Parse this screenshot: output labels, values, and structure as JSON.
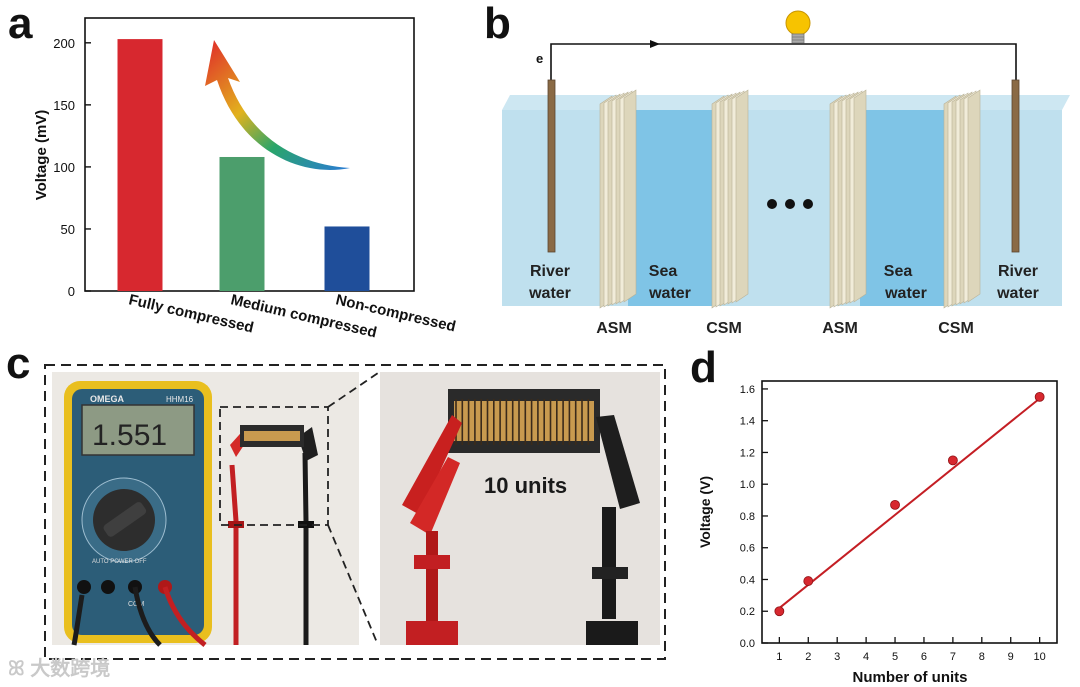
{
  "panels": {
    "a": "a",
    "b": "b",
    "c": "c",
    "d": "d"
  },
  "chart_a": {
    "type": "bar",
    "ylabel": "Voltage (mV)",
    "yticks": [
      "0",
      "50",
      "100",
      "150",
      "200"
    ],
    "categories": [
      "Fully compressed",
      "Medium compressed",
      "Non-compressed"
    ],
    "values": [
      203,
      108,
      52
    ],
    "ylim": [
      0,
      220
    ],
    "colors": [
      "#d7282f",
      "#4c9e6c",
      "#1f4e9a"
    ]
  },
  "schematic_b": {
    "electron_label": "e",
    "river_left": [
      "River",
      "water"
    ],
    "sea_left": [
      "Sea",
      "water"
    ],
    "sea_right": [
      "Sea",
      "water"
    ],
    "river_right": [
      "River",
      "water"
    ],
    "membranes": [
      "ASM",
      "CSM",
      "ASM",
      "CSM"
    ]
  },
  "photo_c": {
    "meter_brand": "OMEGA",
    "meter_model": "HHM16",
    "display_reading": "1.551",
    "meter_text": [
      "AUTO POWER OFF",
      "COM"
    ],
    "units_label": "10 units"
  },
  "chart_data": {
    "type": "scatter",
    "xlabel": "Number of units",
    "ylabel": "Voltage (V)",
    "x": [
      1,
      2,
      5,
      7,
      10
    ],
    "y": [
      0.2,
      0.39,
      0.87,
      1.15,
      1.55
    ],
    "fit_line": {
      "x": [
        1,
        10
      ],
      "y": [
        0.22,
        1.54
      ]
    },
    "xticks": [
      "1",
      "2",
      "3",
      "4",
      "5",
      "6",
      "7",
      "8",
      "9",
      "10"
    ],
    "yticks": [
      "0.0",
      "0.2",
      "0.4",
      "0.6",
      "0.8",
      "1.0",
      "1.2",
      "1.4",
      "1.6"
    ],
    "xlim": [
      0.4,
      10.6
    ],
    "ylim": [
      0,
      1.65
    ],
    "point_color": "#d7282f"
  },
  "watermark": "大数跨境"
}
